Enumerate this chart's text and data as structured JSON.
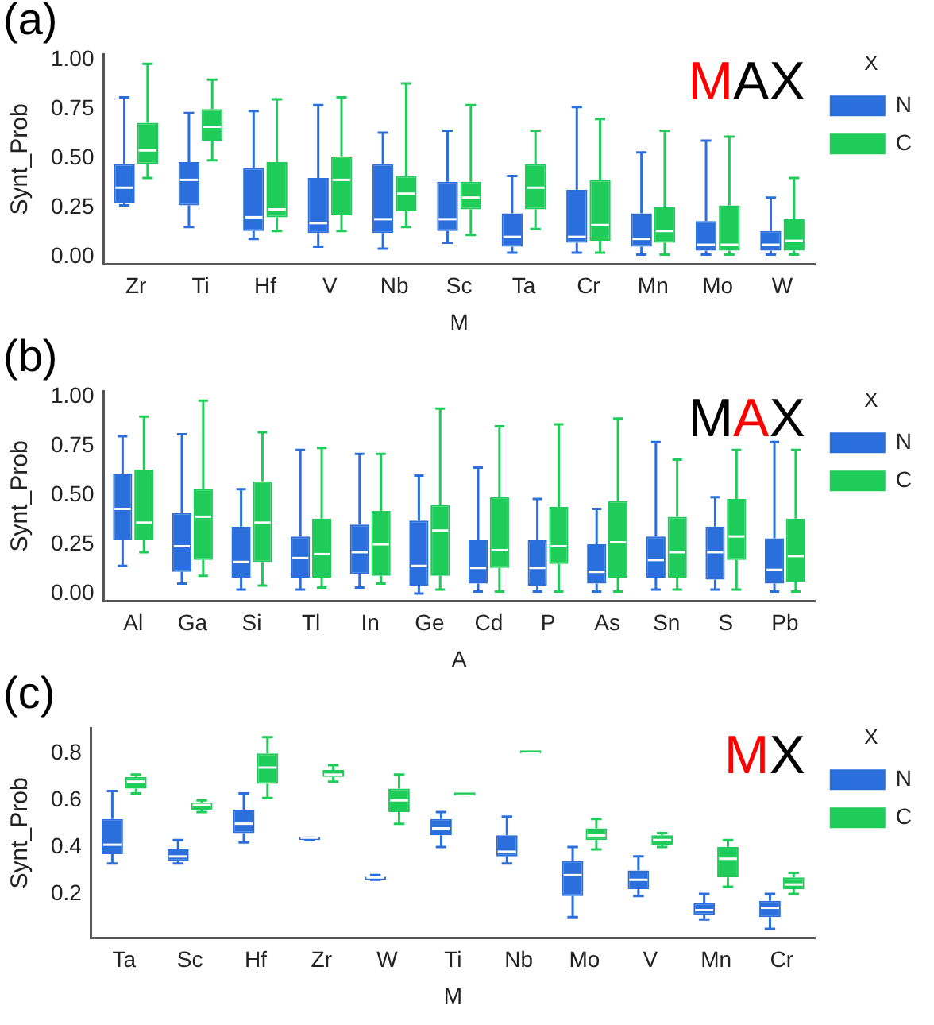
{
  "chart_data": [
    {
      "type": "box",
      "title": null,
      "xlabel": "M",
      "ylabel": "Synt_Prob",
      "legend": "top right",
      "legend_title": "X",
      "annotations": [
        "(a)",
        "MAX"
      ],
      "categories": [
        "Zr",
        "Ti",
        "Hf",
        "V",
        "Nb",
        "Sc",
        "Ta",
        "Cr",
        "Mn",
        "Mo",
        "W"
      ],
      "ylim": [
        -0.04,
        1.03
      ],
      "yticks": [
        {
          "value": 0,
          "label": "0.00"
        },
        {
          "value": 0.25,
          "label": "0.25"
        },
        {
          "value": 0.5,
          "label": "0.50"
        },
        {
          "value": 0.75,
          "label": "0.75"
        },
        {
          "value": 1,
          "label": "1.00"
        }
      ],
      "series": [
        {
          "name": "N",
          "color": "#2a6fdb",
          "boxes": [
            {
              "low": 0.26,
              "q1": 0.27,
              "median": 0.35,
              "q3": 0.47,
              "high": 0.81
            },
            {
              "low": 0.15,
              "q1": 0.26,
              "median": 0.39,
              "q3": 0.48,
              "high": 0.73
            },
            {
              "low": 0.09,
              "q1": 0.13,
              "median": 0.2,
              "q3": 0.45,
              "high": 0.74
            },
            {
              "low": 0.05,
              "q1": 0.12,
              "median": 0.17,
              "q3": 0.4,
              "high": 0.77
            },
            {
              "low": 0.04,
              "q1": 0.12,
              "median": 0.19,
              "q3": 0.47,
              "high": 0.63
            },
            {
              "low": 0.07,
              "q1": 0.13,
              "median": 0.19,
              "q3": 0.38,
              "high": 0.64
            },
            {
              "low": 0.02,
              "q1": 0.05,
              "median": 0.1,
              "q3": 0.22,
              "high": 0.41
            },
            {
              "low": 0.02,
              "q1": 0.07,
              "median": 0.1,
              "q3": 0.34,
              "high": 0.76
            },
            {
              "low": 0.01,
              "q1": 0.05,
              "median": 0.09,
              "q3": 0.22,
              "high": 0.53
            },
            {
              "low": 0.01,
              "q1": 0.03,
              "median": 0.06,
              "q3": 0.18,
              "high": 0.59
            },
            {
              "low": 0.01,
              "q1": 0.03,
              "median": 0.06,
              "q3": 0.13,
              "high": 0.3
            }
          ]
        },
        {
          "name": "C",
          "color": "#1fcc5a",
          "boxes": [
            {
              "low": 0.4,
              "q1": 0.47,
              "median": 0.54,
              "q3": 0.68,
              "high": 0.98
            },
            {
              "low": 0.49,
              "q1": 0.59,
              "median": 0.66,
              "q3": 0.75,
              "high": 0.9
            },
            {
              "low": 0.13,
              "q1": 0.2,
              "median": 0.24,
              "q3": 0.48,
              "high": 0.8
            },
            {
              "low": 0.13,
              "q1": 0.21,
              "median": 0.39,
              "q3": 0.51,
              "high": 0.81
            },
            {
              "low": 0.15,
              "q1": 0.23,
              "median": 0.32,
              "q3": 0.41,
              "high": 0.88
            },
            {
              "low": 0.11,
              "q1": 0.24,
              "median": 0.3,
              "q3": 0.38,
              "high": 0.77
            },
            {
              "low": 0.14,
              "q1": 0.24,
              "median": 0.35,
              "q3": 0.47,
              "high": 0.64
            },
            {
              "low": 0.02,
              "q1": 0.08,
              "median": 0.16,
              "q3": 0.39,
              "high": 0.7
            },
            {
              "low": 0.01,
              "q1": 0.07,
              "median": 0.13,
              "q3": 0.25,
              "high": 0.64
            },
            {
              "low": 0.01,
              "q1": 0.03,
              "median": 0.06,
              "q3": 0.26,
              "high": 0.61
            },
            {
              "low": 0.01,
              "q1": 0.03,
              "median": 0.08,
              "q3": 0.19,
              "high": 0.4
            }
          ]
        }
      ]
    },
    {
      "type": "box",
      "title": null,
      "xlabel": "A",
      "ylabel": "Synt_Prob",
      "legend": "top right",
      "legend_title": "X",
      "annotations": [
        "(b)",
        "MAX"
      ],
      "categories": [
        "Al",
        "Ga",
        "Si",
        "Tl",
        "In",
        "Ge",
        "Cd",
        "P",
        "As",
        "Sn",
        "S",
        "Pb"
      ],
      "ylim": [
        -0.04,
        1.03
      ],
      "yticks": [
        {
          "value": 0,
          "label": "0.00"
        },
        {
          "value": 0.25,
          "label": "0.25"
        },
        {
          "value": 0.5,
          "label": "0.50"
        },
        {
          "value": 0.75,
          "label": "0.75"
        },
        {
          "value": 1,
          "label": "1.00"
        }
      ],
      "series": [
        {
          "name": "N",
          "color": "#2a6fdb",
          "boxes": [
            {
              "low": 0.14,
              "q1": 0.27,
              "median": 0.43,
              "q3": 0.61,
              "high": 0.8
            },
            {
              "low": 0.05,
              "q1": 0.11,
              "median": 0.24,
              "q3": 0.41,
              "high": 0.81
            },
            {
              "low": 0.02,
              "q1": 0.08,
              "median": 0.16,
              "q3": 0.34,
              "high": 0.53
            },
            {
              "low": 0.02,
              "q1": 0.08,
              "median": 0.18,
              "q3": 0.29,
              "high": 0.73
            },
            {
              "low": 0.03,
              "q1": 0.1,
              "median": 0.21,
              "q3": 0.35,
              "high": 0.71
            },
            {
              "low": 0,
              "q1": 0.04,
              "median": 0.14,
              "q3": 0.37,
              "high": 0.6
            },
            {
              "low": 0.01,
              "q1": 0.05,
              "median": 0.13,
              "q3": 0.27,
              "high": 0.64
            },
            {
              "low": 0.01,
              "q1": 0.04,
              "median": 0.13,
              "q3": 0.27,
              "high": 0.48
            },
            {
              "low": 0.01,
              "q1": 0.05,
              "median": 0.11,
              "q3": 0.25,
              "high": 0.43
            },
            {
              "low": 0.02,
              "q1": 0.08,
              "median": 0.17,
              "q3": 0.29,
              "high": 0.77
            },
            {
              "low": 0.02,
              "q1": 0.07,
              "median": 0.21,
              "q3": 0.34,
              "high": 0.49
            },
            {
              "low": 0.01,
              "q1": 0.05,
              "median": 0.12,
              "q3": 0.28,
              "high": 0.77
            }
          ]
        },
        {
          "name": "C",
          "color": "#1fcc5a",
          "boxes": [
            {
              "low": 0.21,
              "q1": 0.27,
              "median": 0.36,
              "q3": 0.63,
              "high": 0.9
            },
            {
              "low": 0.09,
              "q1": 0.17,
              "median": 0.39,
              "q3": 0.53,
              "high": 0.98
            },
            {
              "low": 0.04,
              "q1": 0.16,
              "median": 0.36,
              "q3": 0.57,
              "high": 0.82
            },
            {
              "low": 0.03,
              "q1": 0.08,
              "median": 0.2,
              "q3": 0.38,
              "high": 0.74
            },
            {
              "low": 0.05,
              "q1": 0.09,
              "median": 0.25,
              "q3": 0.42,
              "high": 0.71
            },
            {
              "low": 0.02,
              "q1": 0.09,
              "median": 0.32,
              "q3": 0.45,
              "high": 0.94
            },
            {
              "low": 0.01,
              "q1": 0.13,
              "median": 0.22,
              "q3": 0.49,
              "high": 0.85
            },
            {
              "low": 0.01,
              "q1": 0.15,
              "median": 0.24,
              "q3": 0.44,
              "high": 0.86
            },
            {
              "low": 0.01,
              "q1": 0.08,
              "median": 0.26,
              "q3": 0.47,
              "high": 0.89
            },
            {
              "low": 0.02,
              "q1": 0.08,
              "median": 0.21,
              "q3": 0.39,
              "high": 0.68
            },
            {
              "low": 0.02,
              "q1": 0.17,
              "median": 0.29,
              "q3": 0.48,
              "high": 0.73
            },
            {
              "low": 0.01,
              "q1": 0.06,
              "median": 0.19,
              "q3": 0.38,
              "high": 0.73
            }
          ]
        }
      ]
    },
    {
      "type": "box",
      "title": null,
      "xlabel": "M",
      "ylabel": "Synt_Prob",
      "legend": "top right",
      "legend_title": "X",
      "annotations": [
        "(c)",
        "MX"
      ],
      "categories": [
        "Ta",
        "Sc",
        "Hf",
        "Zr",
        "W",
        "Ti",
        "Nb",
        "Mo",
        "V",
        "Mn",
        "Cr"
      ],
      "ylim": [
        0.01,
        0.91
      ],
      "yticks": [
        0.2,
        0.4,
        0.6,
        0.8
      ],
      "series": [
        {
          "name": "N",
          "color": "#2a6fdb",
          "boxes": [
            {
              "low": 0.33,
              "q1": 0.37,
              "median": 0.41,
              "q3": 0.52,
              "high": 0.64
            },
            {
              "low": 0.33,
              "q1": 0.34,
              "median": 0.36,
              "q3": 0.39,
              "high": 0.43
            },
            {
              "low": 0.42,
              "q1": 0.46,
              "median": 0.5,
              "q3": 0.56,
              "high": 0.63
            },
            {
              "low": 0.43,
              "q1": 0.43,
              "median": 0.44,
              "q3": 0.44,
              "high": 0.44
            },
            {
              "low": 0.26,
              "q1": 0.26,
              "median": 0.27,
              "q3": 0.27,
              "high": 0.28
            },
            {
              "low": 0.4,
              "q1": 0.45,
              "median": 0.48,
              "q3": 0.52,
              "high": 0.55
            },
            {
              "low": 0.33,
              "q1": 0.36,
              "median": 0.38,
              "q3": 0.45,
              "high": 0.53
            },
            {
              "low": 0.1,
              "q1": 0.19,
              "median": 0.28,
              "q3": 0.34,
              "high": 0.4
            },
            {
              "low": 0.19,
              "q1": 0.22,
              "median": 0.26,
              "q3": 0.3,
              "high": 0.36
            },
            {
              "low": 0.09,
              "q1": 0.11,
              "median": 0.13,
              "q3": 0.16,
              "high": 0.2
            },
            {
              "low": 0.05,
              "q1": 0.1,
              "median": 0.14,
              "q3": 0.17,
              "high": 0.2
            }
          ]
        },
        {
          "name": "C",
          "color": "#1fcc5a",
          "boxes": [
            {
              "low": 0.63,
              "q1": 0.65,
              "median": 0.68,
              "q3": 0.7,
              "high": 0.71
            },
            {
              "low": 0.55,
              "q1": 0.56,
              "median": 0.58,
              "q3": 0.59,
              "high": 0.6
            },
            {
              "low": 0.61,
              "q1": 0.67,
              "median": 0.74,
              "q3": 0.8,
              "high": 0.87
            },
            {
              "low": 0.68,
              "q1": 0.7,
              "median": 0.71,
              "q3": 0.73,
              "high": 0.75
            },
            {
              "low": 0.5,
              "q1": 0.55,
              "median": 0.6,
              "q3": 0.65,
              "high": 0.71
            },
            {
              "low": 0.62,
              "q1": 0.62,
              "median": 0.62,
              "q3": 0.62,
              "high": 0.62
            },
            {
              "low": 0.8,
              "q1": 0.8,
              "median": 0.8,
              "q3": 0.8,
              "high": 0.8
            },
            {
              "low": 0.39,
              "q1": 0.43,
              "median": 0.45,
              "q3": 0.48,
              "high": 0.52
            },
            {
              "low": 0.4,
              "q1": 0.41,
              "median": 0.43,
              "q3": 0.45,
              "high": 0.46
            },
            {
              "low": 0.23,
              "q1": 0.27,
              "median": 0.35,
              "q3": 0.4,
              "high": 0.43
            },
            {
              "low": 0.2,
              "q1": 0.22,
              "median": 0.24,
              "q3": 0.27,
              "high": 0.29
            }
          ]
        }
      ]
    }
  ]
}
